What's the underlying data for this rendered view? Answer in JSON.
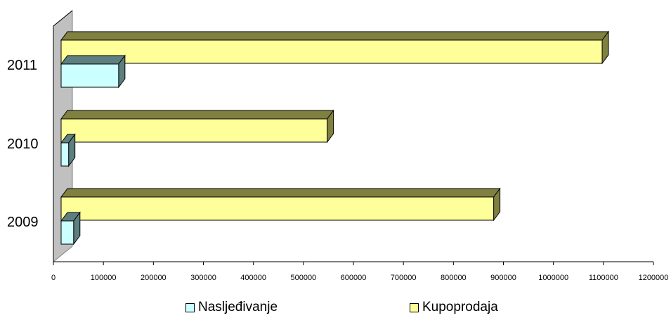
{
  "chart_data": {
    "type": "bar",
    "orientation": "horizontal",
    "three_d": true,
    "categories": [
      "2009",
      "2010",
      "2011"
    ],
    "series": [
      {
        "name": "Nasljeđivanje",
        "values": [
          25000,
          15000,
          115000
        ],
        "color": "#CCFFFF",
        "side_color": "#5E7F7F"
      },
      {
        "name": "Kupoprodaja",
        "values": [
          865000,
          532000,
          1082000
        ],
        "color": "#FFFF99",
        "side_color": "#808040"
      }
    ],
    "xlim": [
      0,
      1200000
    ],
    "xticks": [
      "0",
      "100000",
      "200000",
      "300000",
      "400000",
      "500000",
      "600000",
      "700000",
      "800000",
      "900000",
      "1000000",
      "1100000",
      "1200000"
    ],
    "legend_position": "bottom",
    "grid": false
  }
}
